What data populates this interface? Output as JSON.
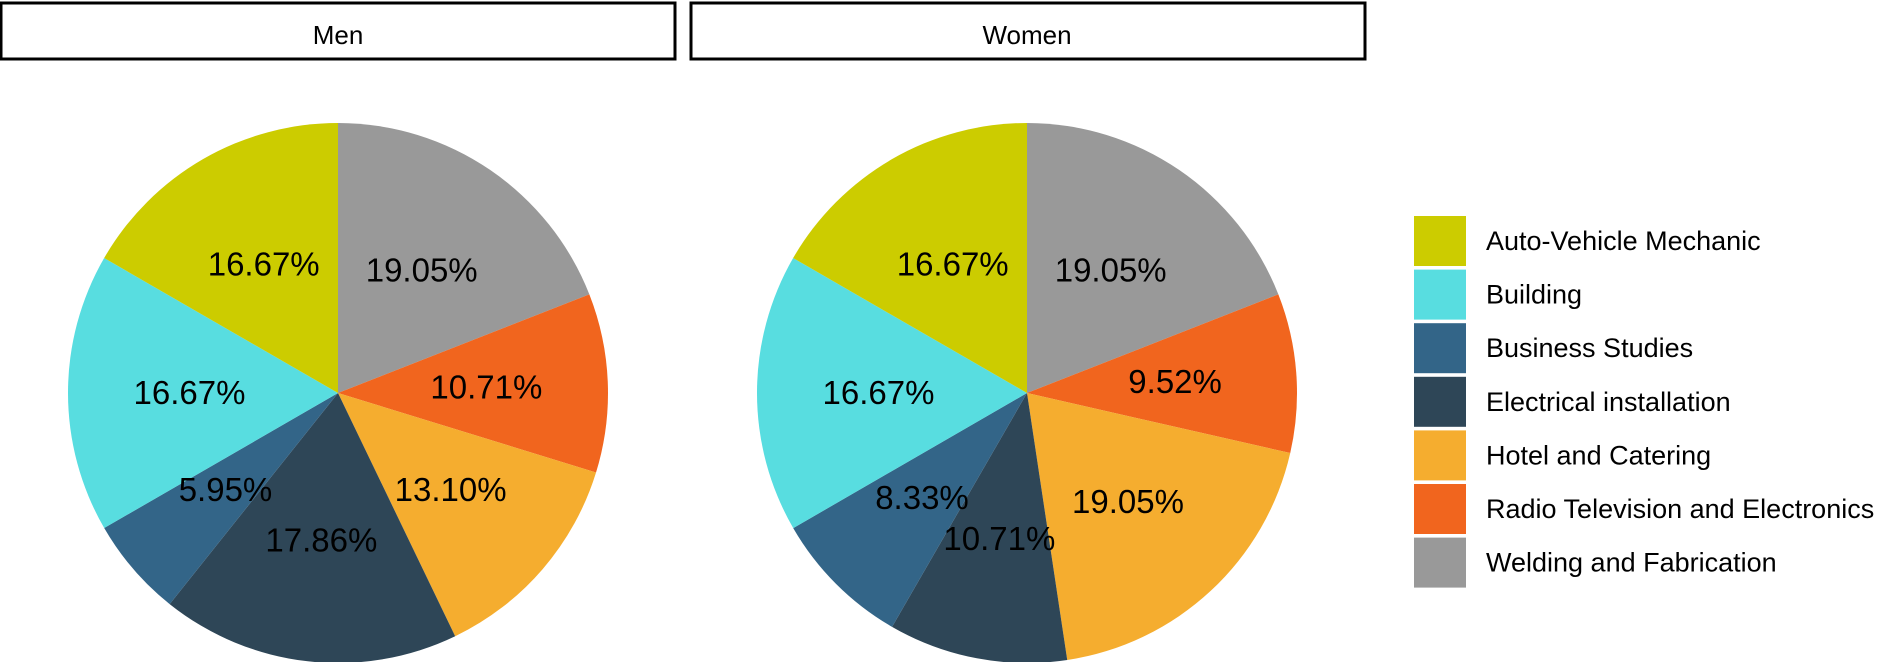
{
  "chart_data": {
    "type": "pie",
    "categories": [
      "Auto-Vehicle Mechanic",
      "Building",
      "Business Studies",
      "Electrical installation",
      "Hotel and Catering",
      "Radio Television and Electronics",
      "Welding and Fabrication"
    ],
    "colors": {
      "Auto-Vehicle Mechanic": "#CCCC00",
      "Building": "#58DDE0",
      "Business Studies": "#336588",
      "Electrical installation": "#2E4657",
      "Hotel and Catering": "#F5AD2F",
      "Radio Television and Electronics": "#F1651E",
      "Welding and Fabrication": "#999999"
    },
    "legend_position": "right",
    "panels": [
      {
        "title": "Men",
        "values": [
          16.67,
          16.67,
          5.95,
          17.86,
          13.1,
          10.71,
          19.05
        ],
        "labels": [
          "16.67%",
          "16.67%",
          "5.95%",
          "17.86%",
          "13.10%",
          "10.71%",
          "19.05%"
        ]
      },
      {
        "title": "Women",
        "values": [
          16.67,
          16.67,
          8.33,
          10.71,
          19.05,
          9.52,
          19.05
        ],
        "labels": [
          "16.67%",
          "16.67%",
          "8.33%",
          "10.71%",
          "19.05%",
          "9.52%",
          "19.05%"
        ]
      }
    ]
  }
}
